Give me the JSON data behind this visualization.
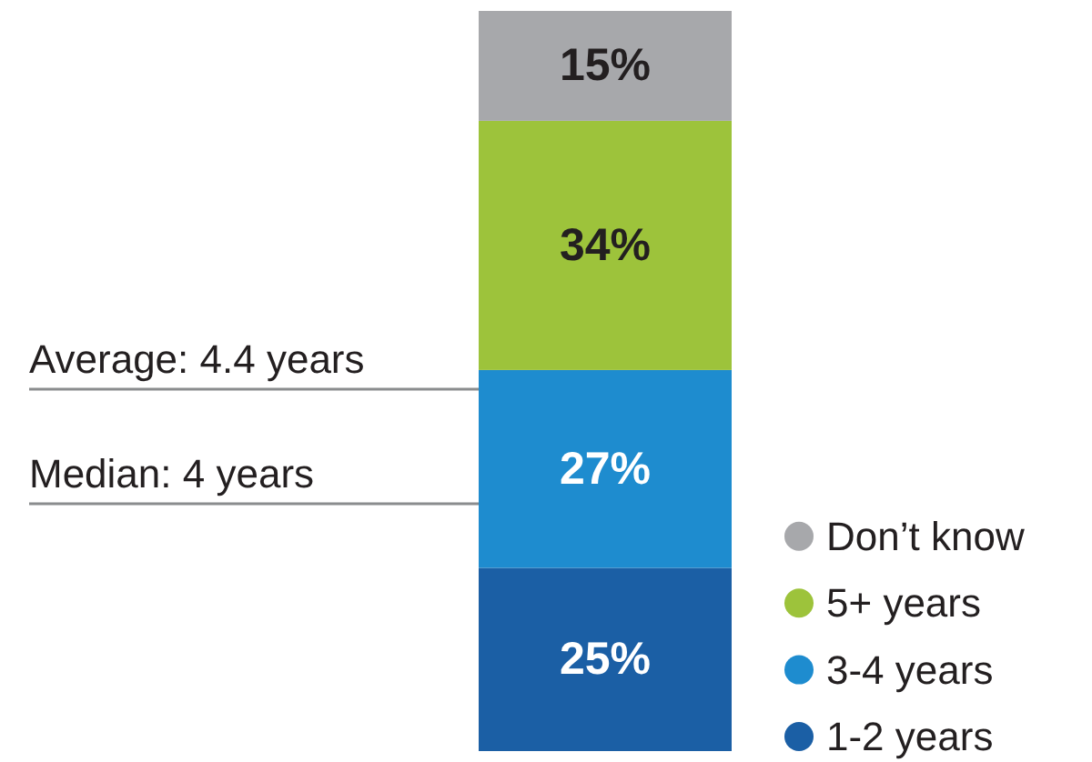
{
  "chart_data": {
    "type": "bar",
    "stacked": true,
    "categories": [
      null
    ],
    "series": [
      {
        "name": "1-2 years",
        "color": "#1b5fa5",
        "values": [
          25
        ],
        "value_labels": [
          "25%"
        ]
      },
      {
        "name": "3-4 years",
        "color": "#1e8ccf",
        "values": [
          27
        ],
        "value_labels": [
          "27%"
        ]
      },
      {
        "name": "5+ years",
        "color": "#9dc33b",
        "values": [
          34
        ],
        "value_labels": [
          "34%"
        ]
      },
      {
        "name": "Don’t know",
        "color": "#a7a8ab",
        "values": [
          15
        ],
        "value_labels": [
          "15%"
        ]
      }
    ],
    "legend": "bottom right",
    "annotations": [
      "Average: 4.4 years",
      "Median: 4 years"
    ]
  }
}
